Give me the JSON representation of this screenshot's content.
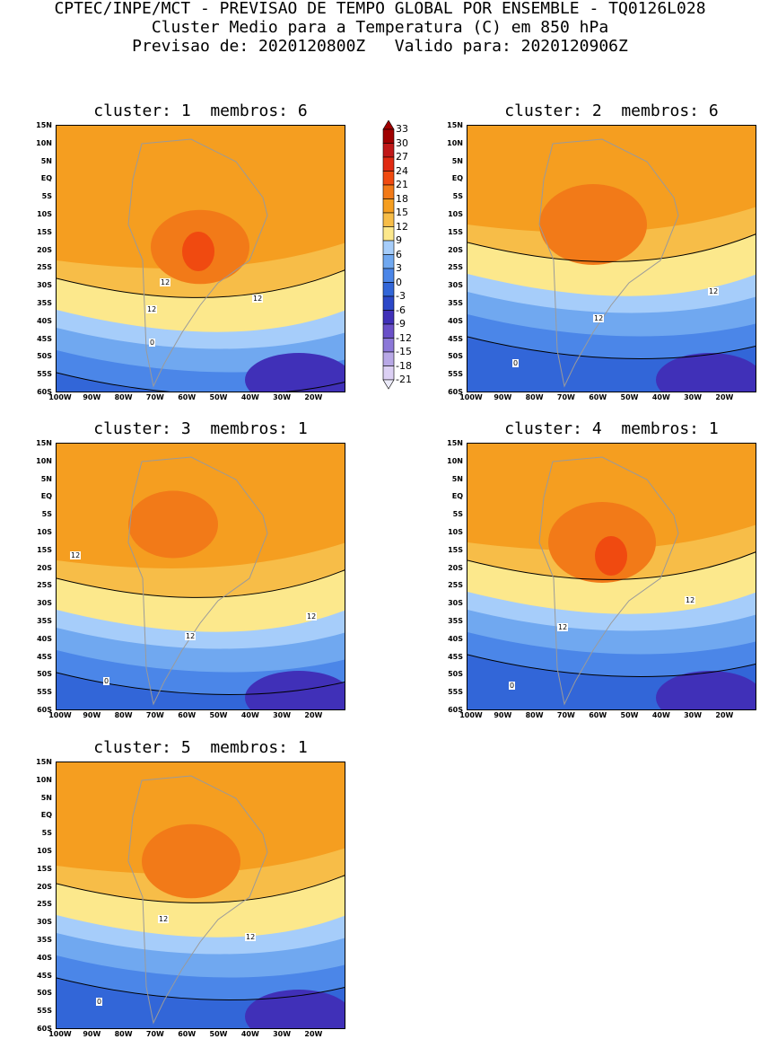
{
  "header": {
    "line1": "CPTEC/INPE/MCT - PREVISAO DE TEMPO GLOBAL POR ENSEMBLE - TQ0126L028",
    "line2": "Cluster Medio para a Temperatura (C) em 850 hPa",
    "line3": "Previsao de: 2020120800Z   Valido para: 2020120906Z"
  },
  "panels": [
    {
      "title": "cluster: 1  membros: 6",
      "contour_labels": [
        "12",
        "12",
        "12",
        "0"
      ]
    },
    {
      "title": "cluster: 2  membros: 6",
      "contour_labels": [
        "12",
        "12",
        "0"
      ]
    },
    {
      "title": "cluster: 3  membros: 1",
      "contour_labels": [
        "12",
        "12",
        "12",
        "0"
      ]
    },
    {
      "title": "cluster: 4  membros: 1",
      "contour_labels": [
        "12",
        "12",
        "0"
      ]
    },
    {
      "title": "cluster: 5  membros: 1",
      "contour_labels": [
        "12",
        "12",
        "0"
      ]
    }
  ],
  "lat_labels": [
    "15N",
    "10N",
    "5N",
    "EQ",
    "5S",
    "10S",
    "15S",
    "20S",
    "25S",
    "30S",
    "35S",
    "40S",
    "45S",
    "50S",
    "55S",
    "60S"
  ],
  "lon_labels": [
    "100W",
    "90W",
    "80W",
    "70W",
    "60W",
    "50W",
    "40W",
    "30W",
    "20W"
  ],
  "legend": {
    "labels": [
      "33",
      "30",
      "27",
      "24",
      "21",
      "18",
      "15",
      "12",
      "9",
      "6",
      "3",
      "0",
      "-3",
      "-6",
      "-9",
      "-12",
      "-15",
      "-18",
      "-21"
    ],
    "colors": [
      "#a00000",
      "#c01818",
      "#e02a12",
      "#f04a10",
      "#f27a18",
      "#f59e20",
      "#f7bd48",
      "#fce88c",
      "#a6cdfa",
      "#70a8f0",
      "#4b86e8",
      "#3266d8",
      "#2c48c8",
      "#4030b8",
      "#6a50c8",
      "#8c78d8",
      "#b8a8e6",
      "#dcd0f4"
    ]
  }
}
